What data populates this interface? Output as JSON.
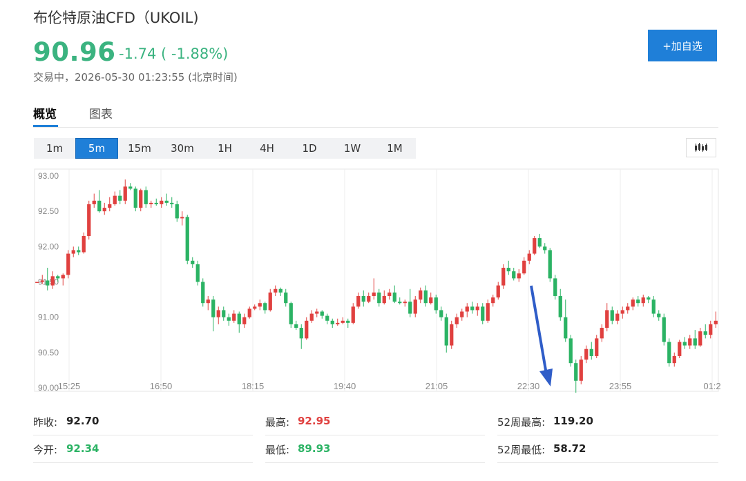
{
  "header": {
    "title": "布伦特原油CFD（UKOIL)",
    "price": "90.96",
    "change": "-1.74 ( -1.88%)",
    "status": "交易中，2026-05-30 01:23:55 (北京时间)",
    "add_button": "+加自选"
  },
  "tabs": [
    {
      "label": "概览"
    },
    {
      "label": "图表"
    }
  ],
  "intervals": [
    "1m",
    "5m",
    "15m",
    "30m",
    "1H",
    "4H",
    "1D",
    "1W",
    "1M"
  ],
  "active_interval": "5m",
  "icons": {
    "chart_type": "candlestick-chart-icon",
    "annotation": "down-arrow-annotation-icon"
  },
  "colors": {
    "up": "#e0403f",
    "down": "#2bb364",
    "accent": "#1f7fd8",
    "arrow": "#2f5dc8"
  },
  "stats": {
    "prev_close": {
      "label": "昨收:",
      "value": "92.70"
    },
    "high": {
      "label": "最高:",
      "value": "92.95"
    },
    "week52_high": {
      "label": "52周最高:",
      "value": "119.20"
    },
    "open": {
      "label": "今开:",
      "value": "92.34"
    },
    "low": {
      "label": "最低:",
      "value": "89.93"
    },
    "week52_low": {
      "label": "52周最低:",
      "value": "58.72"
    }
  },
  "chart_data": {
    "type": "candlestick",
    "title": "",
    "xlabel": "",
    "ylabel": "",
    "ylim": [
      90.0,
      93.0
    ],
    "y_ticks": [
      "93.00",
      "92.50",
      "92.00",
      "91.50",
      "91.00",
      "90.50",
      "90.00"
    ],
    "x_ticks": [
      "15:25",
      "16:50",
      "18:15",
      "19:40",
      "21:05",
      "22:30",
      "23:55",
      "01:2"
    ],
    "grid": "vertical",
    "candles_ohlc": [
      [
        91.5,
        91.5,
        91.5,
        91.5
      ],
      [
        91.5,
        91.6,
        91.47,
        91.52
      ],
      [
        91.52,
        91.7,
        91.38,
        91.45
      ],
      [
        91.45,
        91.65,
        91.4,
        91.58
      ],
      [
        91.58,
        91.6,
        91.5,
        91.55
      ],
      [
        91.55,
        91.62,
        91.45,
        91.6
      ],
      [
        91.6,
        91.95,
        91.55,
        91.9
      ],
      [
        91.9,
        92.0,
        91.85,
        91.95
      ],
      [
        91.95,
        92.0,
        91.88,
        91.92
      ],
      [
        91.92,
        92.2,
        91.9,
        92.15
      ],
      [
        92.15,
        92.65,
        92.1,
        92.6
      ],
      [
        92.6,
        92.75,
        92.55,
        92.65
      ],
      [
        92.65,
        92.8,
        92.48,
        92.5
      ],
      [
        92.5,
        92.62,
        92.45,
        92.55
      ],
      [
        92.55,
        92.7,
        92.5,
        92.6
      ],
      [
        92.6,
        92.78,
        92.58,
        92.72
      ],
      [
        92.72,
        92.8,
        92.6,
        92.65
      ],
      [
        92.65,
        92.95,
        92.6,
        92.85
      ],
      [
        92.85,
        92.9,
        92.8,
        92.82
      ],
      [
        92.82,
        92.85,
        92.5,
        92.55
      ],
      [
        92.55,
        92.82,
        92.5,
        92.8
      ],
      [
        92.8,
        92.85,
        92.55,
        92.6
      ],
      [
        92.6,
        92.65,
        92.55,
        92.62
      ],
      [
        92.62,
        92.68,
        92.58,
        92.6
      ],
      [
        92.6,
        92.7,
        92.55,
        92.65
      ],
      [
        92.65,
        92.75,
        92.58,
        92.62
      ],
      [
        92.62,
        92.7,
        92.55,
        92.6
      ],
      [
        92.6,
        92.65,
        92.35,
        92.4
      ],
      [
        92.4,
        92.5,
        92.3,
        92.42
      ],
      [
        92.42,
        92.45,
        91.75,
        91.8
      ],
      [
        91.8,
        91.85,
        91.7,
        91.75
      ],
      [
        91.75,
        91.8,
        91.45,
        91.5
      ],
      [
        91.5,
        91.55,
        91.15,
        91.2
      ],
      [
        91.2,
        91.3,
        91.1,
        91.25
      ],
      [
        91.25,
        91.3,
        90.8,
        91.0
      ],
      [
        91.0,
        91.15,
        90.9,
        91.1
      ],
      [
        91.1,
        91.15,
        90.95,
        91.0
      ],
      [
        91.0,
        91.05,
        90.88,
        90.95
      ],
      [
        90.95,
        91.1,
        90.92,
        91.05
      ],
      [
        91.05,
        91.08,
        90.78,
        90.9
      ],
      [
        90.9,
        91.05,
        90.85,
        91.0
      ],
      [
        91.0,
        91.15,
        90.98,
        91.12
      ],
      [
        91.12,
        91.18,
        91.1,
        91.15
      ],
      [
        91.15,
        91.25,
        91.1,
        91.2
      ],
      [
        91.2,
        91.22,
        91.05,
        91.1
      ],
      [
        91.1,
        91.4,
        91.08,
        91.35
      ],
      [
        91.35,
        91.45,
        91.3,
        91.4
      ],
      [
        91.4,
        91.42,
        91.3,
        91.35
      ],
      [
        91.35,
        91.4,
        91.15,
        91.2
      ],
      [
        91.2,
        91.22,
        90.85,
        90.9
      ],
      [
        90.9,
        90.95,
        90.82,
        90.85
      ],
      [
        90.85,
        90.9,
        90.55,
        90.7
      ],
      [
        90.7,
        91.0,
        90.68,
        90.95
      ],
      [
        90.95,
        91.1,
        90.92,
        91.05
      ],
      [
        91.05,
        91.12,
        91.0,
        91.08
      ],
      [
        91.08,
        91.1,
        90.98,
        91.02
      ],
      [
        91.02,
        91.05,
        90.9,
        90.95
      ],
      [
        90.95,
        90.98,
        90.85,
        90.9
      ],
      [
        90.9,
        90.98,
        90.88,
        90.92
      ],
      [
        90.92,
        91.0,
        90.9,
        90.95
      ],
      [
        90.95,
        90.98,
        90.85,
        90.92
      ],
      [
        90.92,
        91.2,
        90.9,
        91.15
      ],
      [
        91.15,
        91.35,
        91.12,
        91.3
      ],
      [
        91.3,
        91.38,
        91.15,
        91.22
      ],
      [
        91.22,
        91.35,
        91.2,
        91.3
      ],
      [
        91.3,
        91.55,
        91.25,
        91.35
      ],
      [
        91.35,
        91.4,
        91.15,
        91.2
      ],
      [
        91.2,
        91.38,
        91.18,
        91.3
      ],
      [
        91.3,
        91.4,
        91.25,
        91.35
      ],
      [
        91.35,
        91.45,
        91.2,
        91.22
      ],
      [
        91.22,
        91.28,
        91.18,
        91.2
      ],
      [
        91.2,
        91.25,
        91.15,
        91.22
      ],
      [
        91.22,
        91.4,
        91.0,
        91.05
      ],
      [
        91.05,
        91.3,
        91.0,
        91.25
      ],
      [
        91.25,
        91.42,
        91.2,
        91.38
      ],
      [
        91.38,
        91.45,
        91.15,
        91.2
      ],
      [
        91.2,
        91.35,
        91.18,
        91.28
      ],
      [
        91.28,
        91.32,
        91.05,
        91.1
      ],
      [
        91.1,
        91.15,
        90.95,
        91.0
      ],
      [
        91.0,
        91.05,
        90.5,
        90.6
      ],
      [
        90.6,
        90.95,
        90.55,
        90.9
      ],
      [
        90.9,
        91.05,
        90.85,
        91.0
      ],
      [
        91.0,
        91.12,
        90.95,
        91.08
      ],
      [
        91.08,
        91.2,
        91.0,
        91.15
      ],
      [
        91.15,
        91.22,
        91.05,
        91.1
      ],
      [
        91.1,
        91.2,
        91.02,
        91.15
      ],
      [
        91.15,
        91.2,
        90.9,
        90.95
      ],
      [
        90.95,
        91.25,
        90.92,
        91.2
      ],
      [
        91.2,
        91.32,
        91.15,
        91.28
      ],
      [
        91.28,
        91.5,
        91.25,
        91.45
      ],
      [
        91.45,
        91.75,
        91.4,
        91.7
      ],
      [
        91.7,
        91.8,
        91.6,
        91.65
      ],
      [
        91.65,
        91.7,
        91.52,
        91.55
      ],
      [
        91.55,
        91.68,
        91.5,
        91.62
      ],
      [
        91.62,
        91.85,
        91.6,
        91.8
      ],
      [
        91.8,
        91.95,
        91.75,
        91.9
      ],
      [
        91.9,
        92.15,
        91.88,
        92.12
      ],
      [
        92.12,
        92.18,
        91.98,
        92.0
      ],
      [
        92.0,
        92.05,
        91.9,
        91.95
      ],
      [
        91.95,
        91.98,
        91.5,
        91.55
      ],
      [
        91.55,
        91.6,
        91.25,
        91.3
      ],
      [
        91.3,
        91.4,
        90.95,
        91.0
      ],
      [
        91.0,
        91.25,
        90.65,
        90.7
      ],
      [
        90.7,
        90.75,
        90.3,
        90.35
      ],
      [
        90.35,
        90.4,
        89.93,
        90.1
      ],
      [
        90.1,
        90.45,
        90.05,
        90.4
      ],
      [
        90.4,
        90.6,
        90.35,
        90.55
      ],
      [
        90.55,
        90.65,
        90.4,
        90.45
      ],
      [
        90.45,
        90.75,
        90.42,
        90.7
      ],
      [
        90.7,
        90.9,
        90.65,
        90.85
      ],
      [
        90.85,
        91.2,
        90.8,
        91.1
      ],
      [
        91.1,
        91.15,
        90.9,
        90.95
      ],
      [
        90.95,
        91.1,
        90.9,
        91.05
      ],
      [
        91.05,
        91.15,
        90.98,
        91.1
      ],
      [
        91.1,
        91.2,
        91.05,
        91.15
      ],
      [
        91.15,
        91.28,
        91.1,
        91.25
      ],
      [
        91.25,
        91.3,
        91.15,
        91.2
      ],
      [
        91.2,
        91.32,
        91.15,
        91.28
      ],
      [
        91.28,
        91.3,
        91.2,
        91.25
      ],
      [
        91.25,
        91.3,
        91.0,
        91.05
      ],
      [
        91.05,
        91.1,
        90.95,
        91.0
      ],
      [
        91.0,
        91.05,
        90.6,
        90.65
      ],
      [
        90.65,
        90.7,
        90.3,
        90.35
      ],
      [
        90.35,
        90.5,
        90.3,
        90.45
      ],
      [
        90.45,
        90.68,
        90.42,
        90.65
      ],
      [
        90.65,
        90.72,
        90.55,
        90.6
      ],
      [
        90.6,
        90.75,
        90.55,
        90.7
      ],
      [
        90.7,
        90.82,
        90.55,
        90.6
      ],
      [
        90.6,
        90.85,
        90.58,
        90.8
      ],
      [
        90.8,
        90.9,
        90.7,
        90.75
      ],
      [
        90.75,
        90.95,
        90.7,
        90.9
      ],
      [
        90.9,
        91.08,
        90.85,
        90.95
      ]
    ],
    "annotation": "down-arrow"
  }
}
